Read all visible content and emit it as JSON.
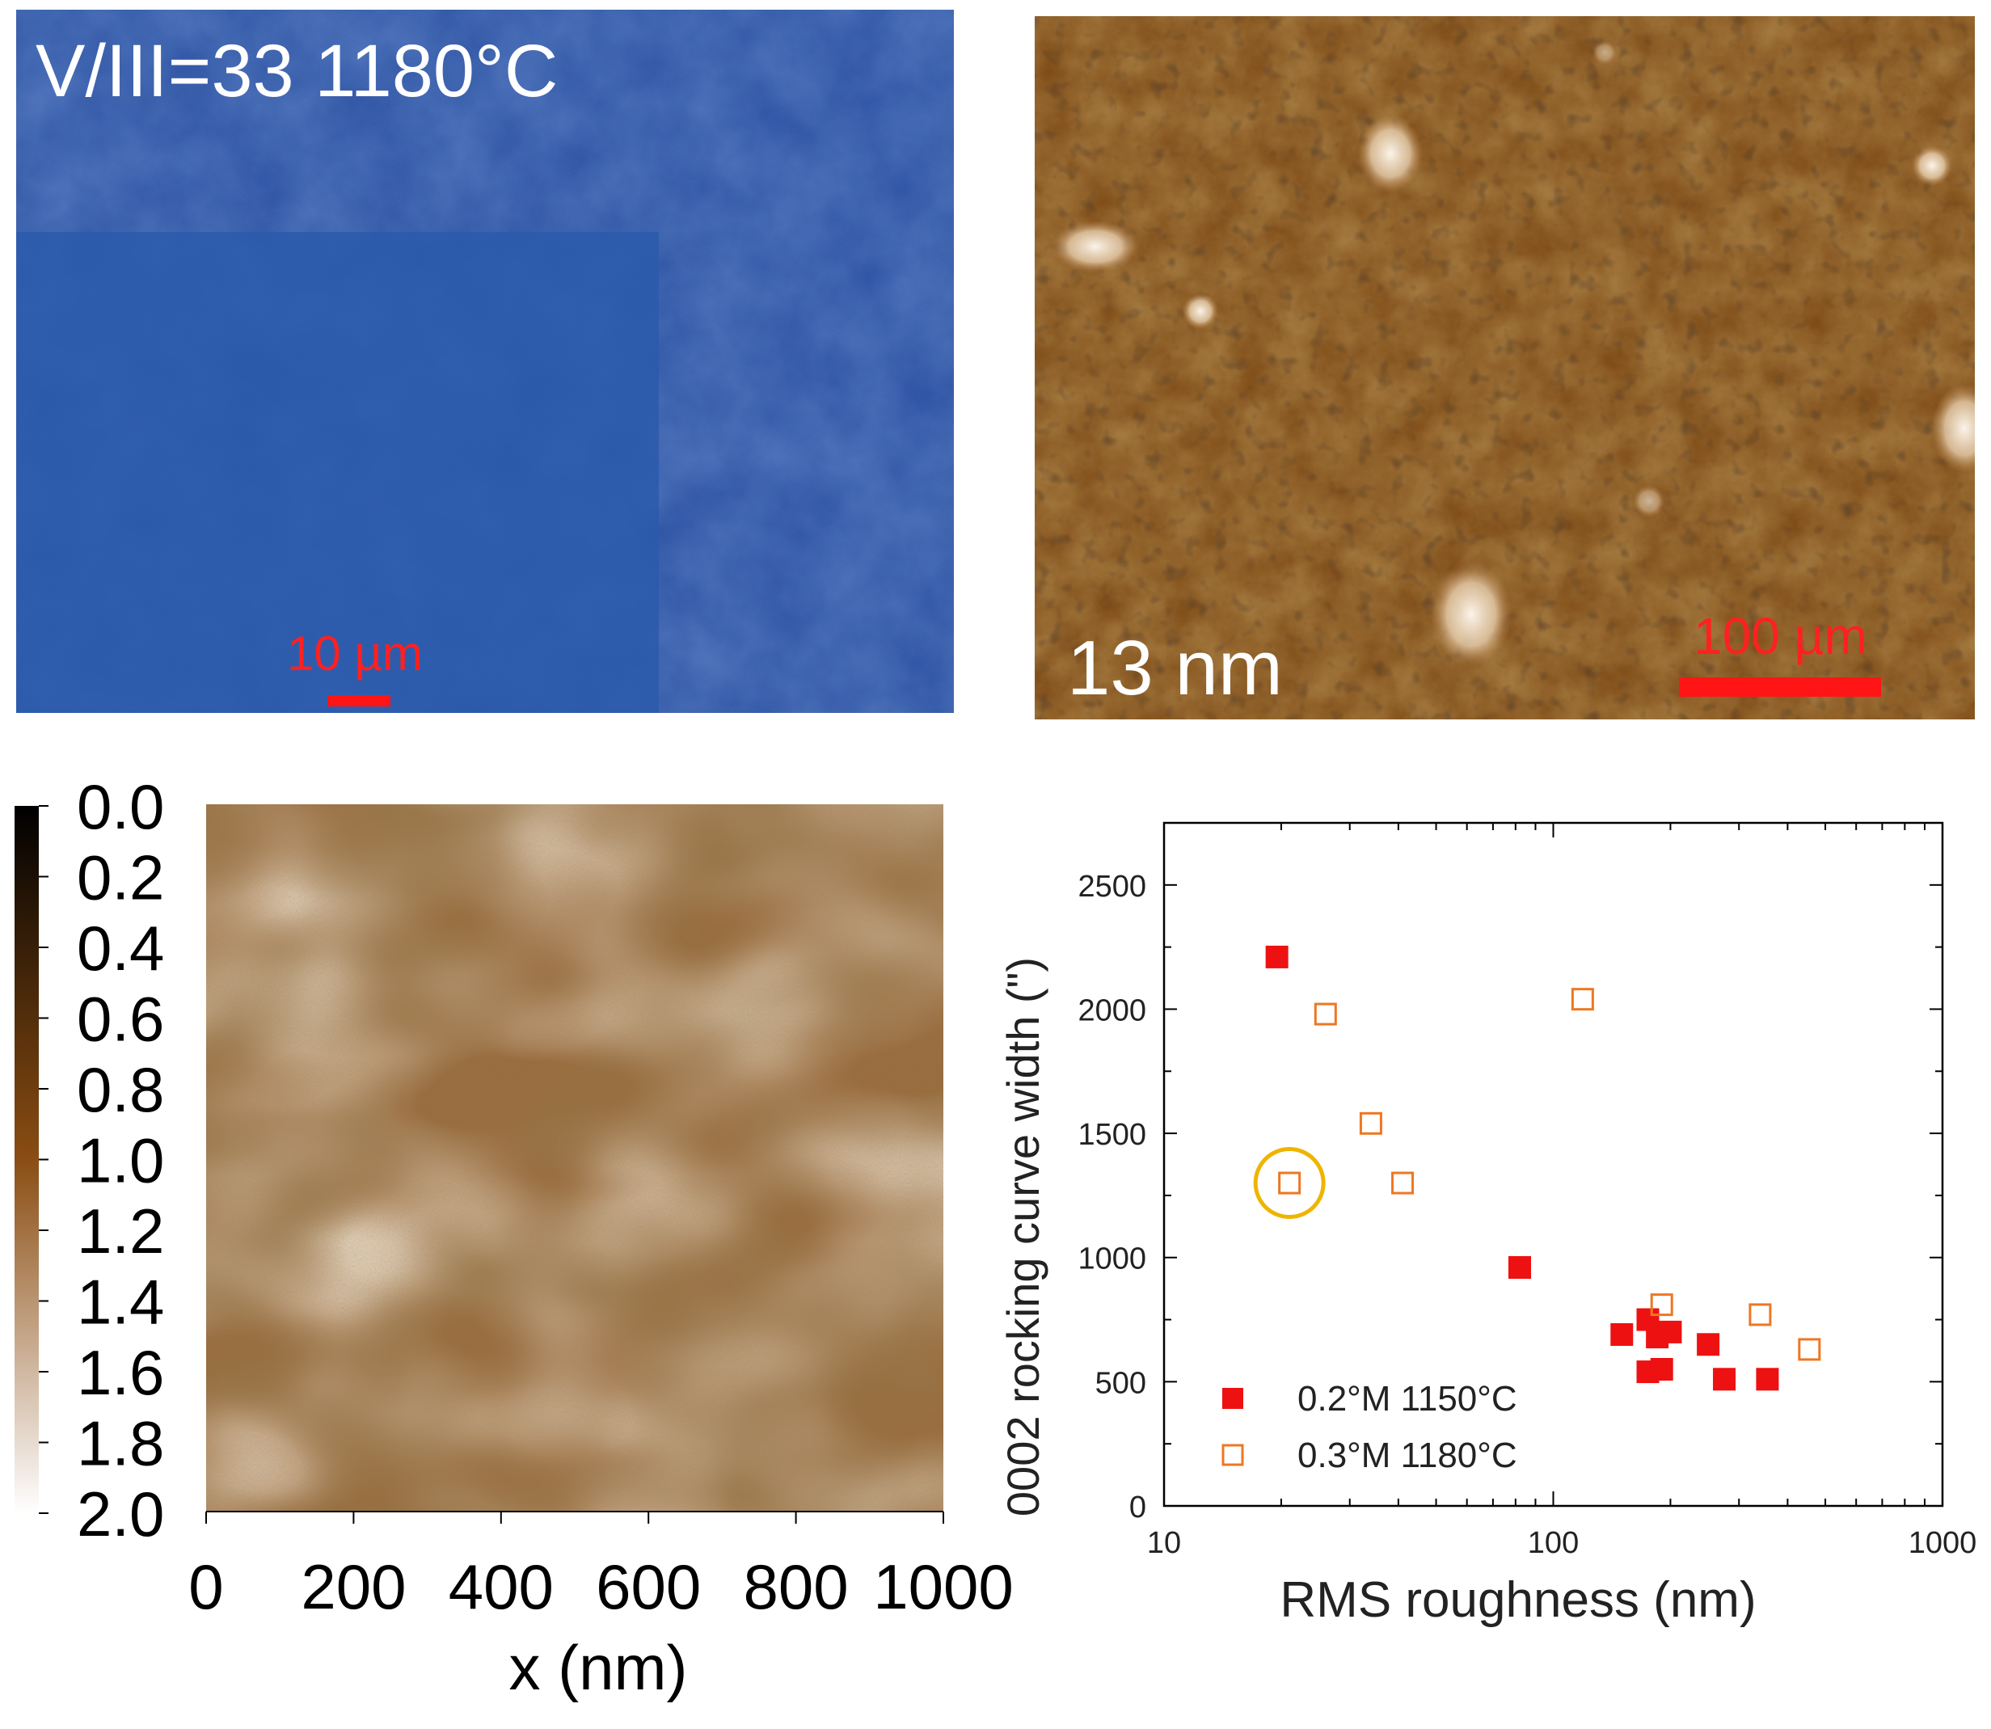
{
  "panels": {
    "optical": {
      "label": "V/III=33 1180°C",
      "scale_bar": "10 µm",
      "colors": {
        "base": "#21479a",
        "smooth": "#2c5bab",
        "highlight": "#4a7cd0"
      }
    },
    "afm_large": {
      "rms_label": "13 nm",
      "scale_bar": "100 µm",
      "colors": {
        "base": "#7b4713",
        "light": "#f2e6d6",
        "dark": "#2a1606"
      }
    }
  },
  "chart_data": [
    {
      "type": "heatmap",
      "title": "",
      "colorbar": {
        "ticks": [
          "0.0",
          "0.2",
          "0.4",
          "0.6",
          "0.8",
          "1.0",
          "1.2",
          "1.4",
          "1.6",
          "1.8",
          "2.0"
        ],
        "range": [
          0.0,
          2.0
        ],
        "colors": [
          "#000000",
          "#8a4d13",
          "#ffffff"
        ]
      },
      "xlabel": "x  (nm)",
      "x_ticks": [
        "0",
        "200",
        "400",
        "600",
        "800",
        "1000"
      ],
      "x_tick_values": [
        0,
        200,
        400,
        600,
        800,
        1000
      ],
      "xlim": [
        0,
        1000
      ],
      "image_colors": {
        "mid": "#9a6a3a",
        "dark": "#5e3612",
        "light": "#d8bc98"
      }
    },
    {
      "type": "scatter",
      "title": "",
      "xlabel": "RMS roughness  (nm)",
      "ylabel": "0002 rocking curve width  (\")",
      "x_scale": "log",
      "xlim": [
        10,
        1000
      ],
      "ylim": [
        0,
        2750
      ],
      "x_ticks": [
        "10",
        "100",
        "1000"
      ],
      "x_tick_values": [
        10,
        100,
        1000
      ],
      "y_ticks": [
        "0",
        "500",
        "1000",
        "1500",
        "2000",
        "2500"
      ],
      "y_tick_values": [
        0,
        500,
        1000,
        1500,
        2000,
        2500
      ],
      "legend_position": "bottom-left",
      "series": [
        {
          "name": "0.2°M 1150°C",
          "marker": "filled-square",
          "color": "#ee1111",
          "points": [
            [
              19.5,
              2210
            ],
            [
              82,
              960
            ],
            [
              150,
              690
            ],
            [
              175,
              750
            ],
            [
              185,
              680
            ],
            [
              200,
              700
            ],
            [
              175,
              540
            ],
            [
              190,
              550
            ],
            [
              250,
              650
            ],
            [
              275,
              510
            ],
            [
              355,
              510
            ]
          ]
        },
        {
          "name": "0.3°M 1180°C",
          "marker": "open-square",
          "color": "#ee7722",
          "points": [
            [
              26,
              1980
            ],
            [
              119,
              2040
            ],
            [
              34,
              1540
            ],
            [
              21,
              1300
            ],
            [
              41,
              1300
            ],
            [
              190,
              810
            ],
            [
              340,
              770
            ],
            [
              455,
              630
            ]
          ]
        }
      ],
      "highlight": {
        "x": 21,
        "y": 1300,
        "color": "#f0b400"
      }
    }
  ]
}
